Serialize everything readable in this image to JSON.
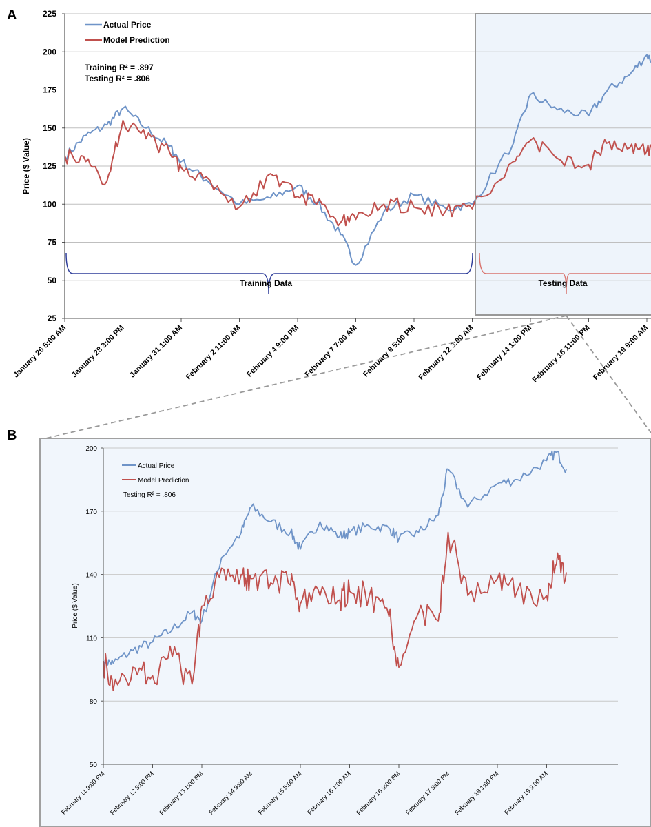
{
  "panels": [
    {
      "label": "A"
    },
    {
      "label": "B"
    }
  ],
  "chart_data": [
    {
      "type": "line",
      "panel": "A",
      "ylabel": "Price ($ Value)",
      "ylim": [
        25,
        225
      ],
      "yticks": [
        25,
        50,
        75,
        100,
        125,
        150,
        175,
        200,
        225
      ],
      "grid": true,
      "legend_position": "top-left",
      "annotation": [
        "Training R² = .897",
        "Testing R² = .806"
      ],
      "x_tick_labels": [
        "January 26 5:00 AM",
        "January 28 3:00 PM",
        "January 31 1:00 AM",
        "February 2 11:00 AM",
        "February 4 9:00 PM",
        "February 7 7:00 AM",
        "February 9 5:00 PM",
        "February 12 3:00 AM",
        "February 14 1:00 PM",
        "February 16 11:00 PM",
        "February 19 9:00 AM"
      ],
      "brace_labels": {
        "training": "Training Data",
        "testing": "Testing Data"
      },
      "series": [
        {
          "name": "Actual Price",
          "color": "#6f94c8",
          "x": [
            "January 26 5:00 AM",
            "January 27 2:00 AM",
            "January 27 11:00 PM",
            "January 28 3:00 PM",
            "January 29 2:00 PM",
            "January 30 1:00 PM",
            "January 31 1:00 AM",
            "February 1 2:00 AM",
            "February 2 11:00 AM",
            "February 3 6:00 PM",
            "February 4 9:00 PM",
            "February 5 4:00 PM",
            "February 6 4:00 PM",
            "February 7 7:00 AM",
            "February 8 11:00 AM",
            "February 9 5:00 PM",
            "February 11 1:00 AM",
            "February 12 3:00 AM",
            "February 13 8:00 PM",
            "February 14 1:00 PM",
            "February 15 4:00 PM",
            "February 16 11:00 PM",
            "February 17 5:00 PM",
            "February 18 4:00 PM",
            "February 19 9:00 AM",
            "February 19 7:00 PM"
          ],
          "values": [
            131,
            145,
            152,
            163,
            150,
            138,
            128,
            116,
            100,
            104,
            112,
            101,
            80,
            60,
            95,
            106,
            97,
            100,
            140,
            172,
            162,
            158,
            174,
            185,
            198,
            190
          ]
        },
        {
          "name": "Model Prediction",
          "color": "#c0504d",
          "x": [
            "January 26 5:00 AM",
            "January 27 2:00 AM",
            "January 27 11:00 PM",
            "January 28 3:00 PM",
            "January 29 2:00 PM",
            "January 30 1:00 PM",
            "January 31 1:00 AM",
            "February 1 2:00 AM",
            "February 2 11:00 AM",
            "February 3 6:00 PM",
            "February 4 9:00 PM",
            "February 5 4:00 PM",
            "February 6 4:00 PM",
            "February 7 7:00 AM",
            "February 8 11:00 AM",
            "February 9 5:00 PM",
            "February 11 1:00 AM",
            "February 12 3:00 AM",
            "February 13 8:00 PM",
            "February 14 1:00 PM",
            "February 15 4:00 PM",
            "February 16 11:00 PM",
            "February 17 5:00 PM",
            "February 18 4:00 PM",
            "February 19 9:00 AM",
            "February 19 7:00 PM"
          ],
          "values": [
            132,
            128,
            115,
            155,
            143,
            135,
            124,
            118,
            98,
            120,
            105,
            100,
            88,
            90,
            100,
            98,
            96,
            97,
            128,
            142,
            130,
            126,
            140,
            137,
            135,
            140
          ]
        }
      ]
    },
    {
      "type": "line",
      "panel": "B",
      "ylabel": "Price ($ Value)",
      "ylim": [
        50,
        200
      ],
      "yticks": [
        50,
        80,
        110,
        140,
        170,
        200
      ],
      "grid": true,
      "legend_position": "top-left",
      "annotation": [
        "Testing R² = .806"
      ],
      "x_tick_labels": [
        "February 11 9:00 PM",
        "February 12 5:00 PM",
        "February 13 1:00 PM",
        "February 14 9:00 AM",
        "February 15 5:00 AM",
        "February 16 1:00 AM",
        "February 16 9:00 PM",
        "February 17 5:00 PM",
        "February 18 1:00 PM",
        "February 19 9:00 AM"
      ],
      "series": [
        {
          "name": "Actual Price",
          "color": "#6f94c8",
          "x": [
            "February 11 9:00 PM",
            "February 12 1:00 AM",
            "February 12 9:00 AM",
            "February 12 5:00 PM",
            "February 13 1:00 AM",
            "February 13 9:00 AM",
            "February 13 1:00 PM",
            "February 13 9:00 PM",
            "February 14 5:00 AM",
            "February 14 9:00 AM",
            "February 14 5:00 PM",
            "February 15 1:00 AM",
            "February 15 5:00 AM",
            "February 15 1:00 PM",
            "February 15 9:00 PM",
            "February 16 1:00 AM",
            "February 16 9:00 AM",
            "February 16 5:00 PM",
            "February 16 9:00 PM",
            "February 17 5:00 AM",
            "February 17 1:00 PM",
            "February 17 5:00 PM",
            "February 18 1:00 AM",
            "February 18 1:00 PM",
            "February 18 9:00 PM",
            "February 19 9:00 AM",
            "February 19 1:00 PM",
            "February 19 5:00 PM"
          ],
          "values": [
            99,
            98,
            104,
            108,
            114,
            122,
            118,
            148,
            160,
            172,
            165,
            160,
            152,
            165,
            158,
            160,
            163,
            162,
            157,
            160,
            168,
            190,
            172,
            183,
            185,
            194,
            198,
            190
          ]
        },
        {
          "name": "Model Prediction",
          "color": "#c0504d",
          "x": [
            "February 11 9:00 PM",
            "February 12 1:00 AM",
            "February 12 9:00 AM",
            "February 12 5:00 PM",
            "February 13 1:00 AM",
            "February 13 9:00 AM",
            "February 13 1:00 PM",
            "February 13 9:00 PM",
            "February 14 5:00 AM",
            "February 14 9:00 AM",
            "February 14 5:00 PM",
            "February 15 1:00 AM",
            "February 15 5:00 AM",
            "February 15 1:00 PM",
            "February 15 9:00 PM",
            "February 16 1:00 AM",
            "February 16 9:00 AM",
            "February 16 5:00 PM",
            "February 16 9:00 PM",
            "February 17 5:00 AM",
            "February 17 1:00 PM",
            "February 17 5:00 PM",
            "February 18 1:00 AM",
            "February 18 1:00 PM",
            "February 18 9:00 PM",
            "February 19 9:00 AM",
            "February 19 1:00 PM",
            "February 19 5:00 PM"
          ],
          "values": [
            99,
            85,
            96,
            92,
            101,
            88,
            125,
            143,
            140,
            138,
            136,
            135,
            126,
            130,
            128,
            132,
            130,
            120,
            96,
            122,
            118,
            160,
            130,
            138,
            132,
            130,
            145,
            141
          ]
        }
      ]
    }
  ]
}
